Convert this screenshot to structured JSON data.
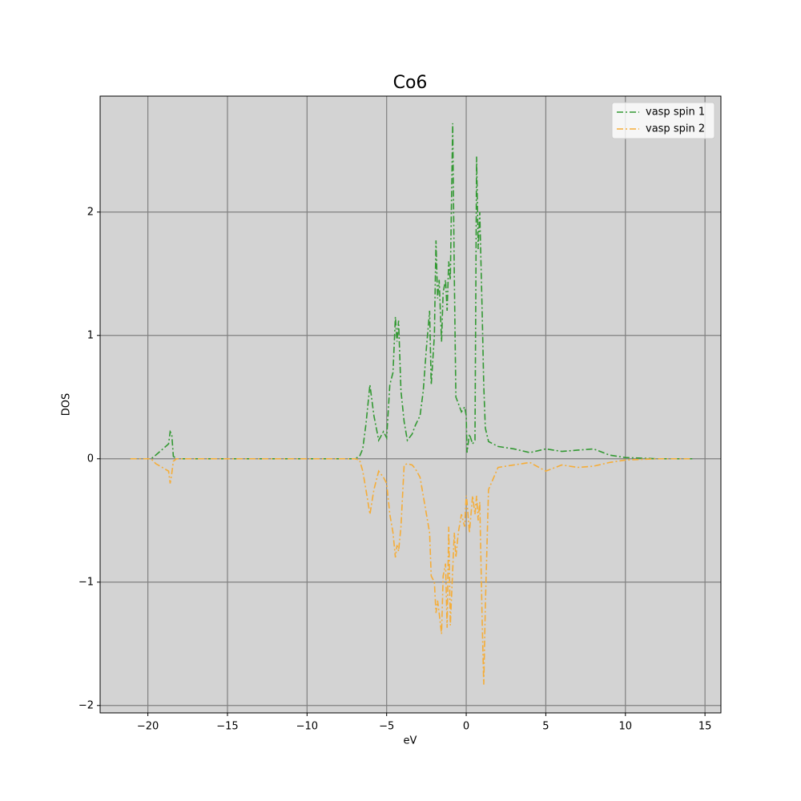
{
  "chart_data": {
    "type": "line",
    "title": "Co6",
    "xlabel": "eV",
    "ylabel": "DOS",
    "x": [
      -21.1,
      -19.8,
      -19.5,
      -18.7,
      -18.6,
      -18.5,
      -18.4,
      -18.2,
      -15,
      -10,
      -7,
      -6.7,
      -6.5,
      -6.3,
      -6.05,
      -5.8,
      -5.5,
      -5.2,
      -5.0,
      -4.8,
      -4.6,
      -4.45,
      -4.35,
      -4.25,
      -4.1,
      -3.9,
      -3.7,
      -3.4,
      -3.2,
      -2.9,
      -2.7,
      -2.5,
      -2.3,
      -2.2,
      -2.0,
      -1.9,
      -1.8,
      -1.7,
      -1.55,
      -1.45,
      -1.3,
      -1.2,
      -1.1,
      -1.0,
      -0.85,
      -0.75,
      -0.65,
      -0.5,
      -0.3,
      -0.1,
      0.0,
      0.05,
      0.2,
      0.4,
      0.55,
      0.65,
      0.75,
      0.85,
      1.0,
      1.1,
      1.2,
      1.4,
      2,
      3,
      4,
      5,
      6,
      7,
      8,
      9,
      10,
      12,
      14.2
    ],
    "series": [
      {
        "name": "vasp spin 1",
        "color": "#339933",
        "values": [
          0,
          0,
          0.03,
          0.12,
          0.22,
          0.2,
          0.02,
          0,
          0,
          0,
          0,
          0.02,
          0.08,
          0.28,
          0.6,
          0.35,
          0.15,
          0.22,
          0.17,
          0.6,
          0.7,
          1.15,
          0.95,
          1.12,
          0.55,
          0.3,
          0.15,
          0.2,
          0.27,
          0.35,
          0.55,
          0.9,
          1.2,
          0.6,
          1.0,
          1.77,
          1.3,
          1.45,
          0.95,
          1.35,
          1.45,
          1.2,
          1.6,
          1.45,
          2.72,
          1.5,
          0.5,
          0.45,
          0.38,
          0.42,
          0.35,
          0.05,
          0.2,
          0.12,
          0.15,
          2.45,
          1.7,
          2.0,
          1.2,
          0.6,
          0.25,
          0.14,
          0.1,
          0.08,
          0.05,
          0.08,
          0.06,
          0.07,
          0.08,
          0.03,
          0.01,
          0,
          0
        ]
      },
      {
        "name": "vasp spin 2",
        "color": "#f5ad38",
        "values": [
          0,
          0,
          -0.04,
          -0.1,
          -0.2,
          -0.12,
          -0.02,
          0,
          0,
          0,
          0,
          -0.01,
          -0.1,
          -0.25,
          -0.45,
          -0.25,
          -0.1,
          -0.15,
          -0.2,
          -0.45,
          -0.6,
          -0.8,
          -0.7,
          -0.75,
          -0.55,
          -0.05,
          -0.04,
          -0.05,
          -0.08,
          -0.15,
          -0.3,
          -0.45,
          -0.6,
          -0.95,
          -1.0,
          -1.25,
          -1.15,
          -1.25,
          -1.42,
          -0.95,
          -0.85,
          -1.37,
          -0.55,
          -1.35,
          -0.9,
          -0.6,
          -0.8,
          -0.6,
          -0.45,
          -0.55,
          -0.3,
          -0.35,
          -0.6,
          -0.3,
          -0.45,
          -0.3,
          -0.5,
          -0.35,
          -1.3,
          -1.83,
          -1.2,
          -0.25,
          -0.07,
          -0.05,
          -0.03,
          -0.1,
          -0.05,
          -0.07,
          -0.06,
          -0.03,
          -0.01,
          0,
          0
        ]
      }
    ],
    "xlim": [
      -23,
      16
    ],
    "ylim": [
      -2.06,
      2.94
    ],
    "xticks": [
      {
        "value": -20,
        "label": "−20"
      },
      {
        "value": -15,
        "label": "−15"
      },
      {
        "value": -10,
        "label": "−10"
      },
      {
        "value": -5,
        "label": "−5"
      },
      0,
      5,
      10,
      15
    ],
    "yticks": [
      {
        "value": -2,
        "label": "−2"
      },
      {
        "value": -1,
        "label": "−1"
      },
      0,
      1,
      2
    ],
    "grid": true,
    "legend": "upper right"
  }
}
